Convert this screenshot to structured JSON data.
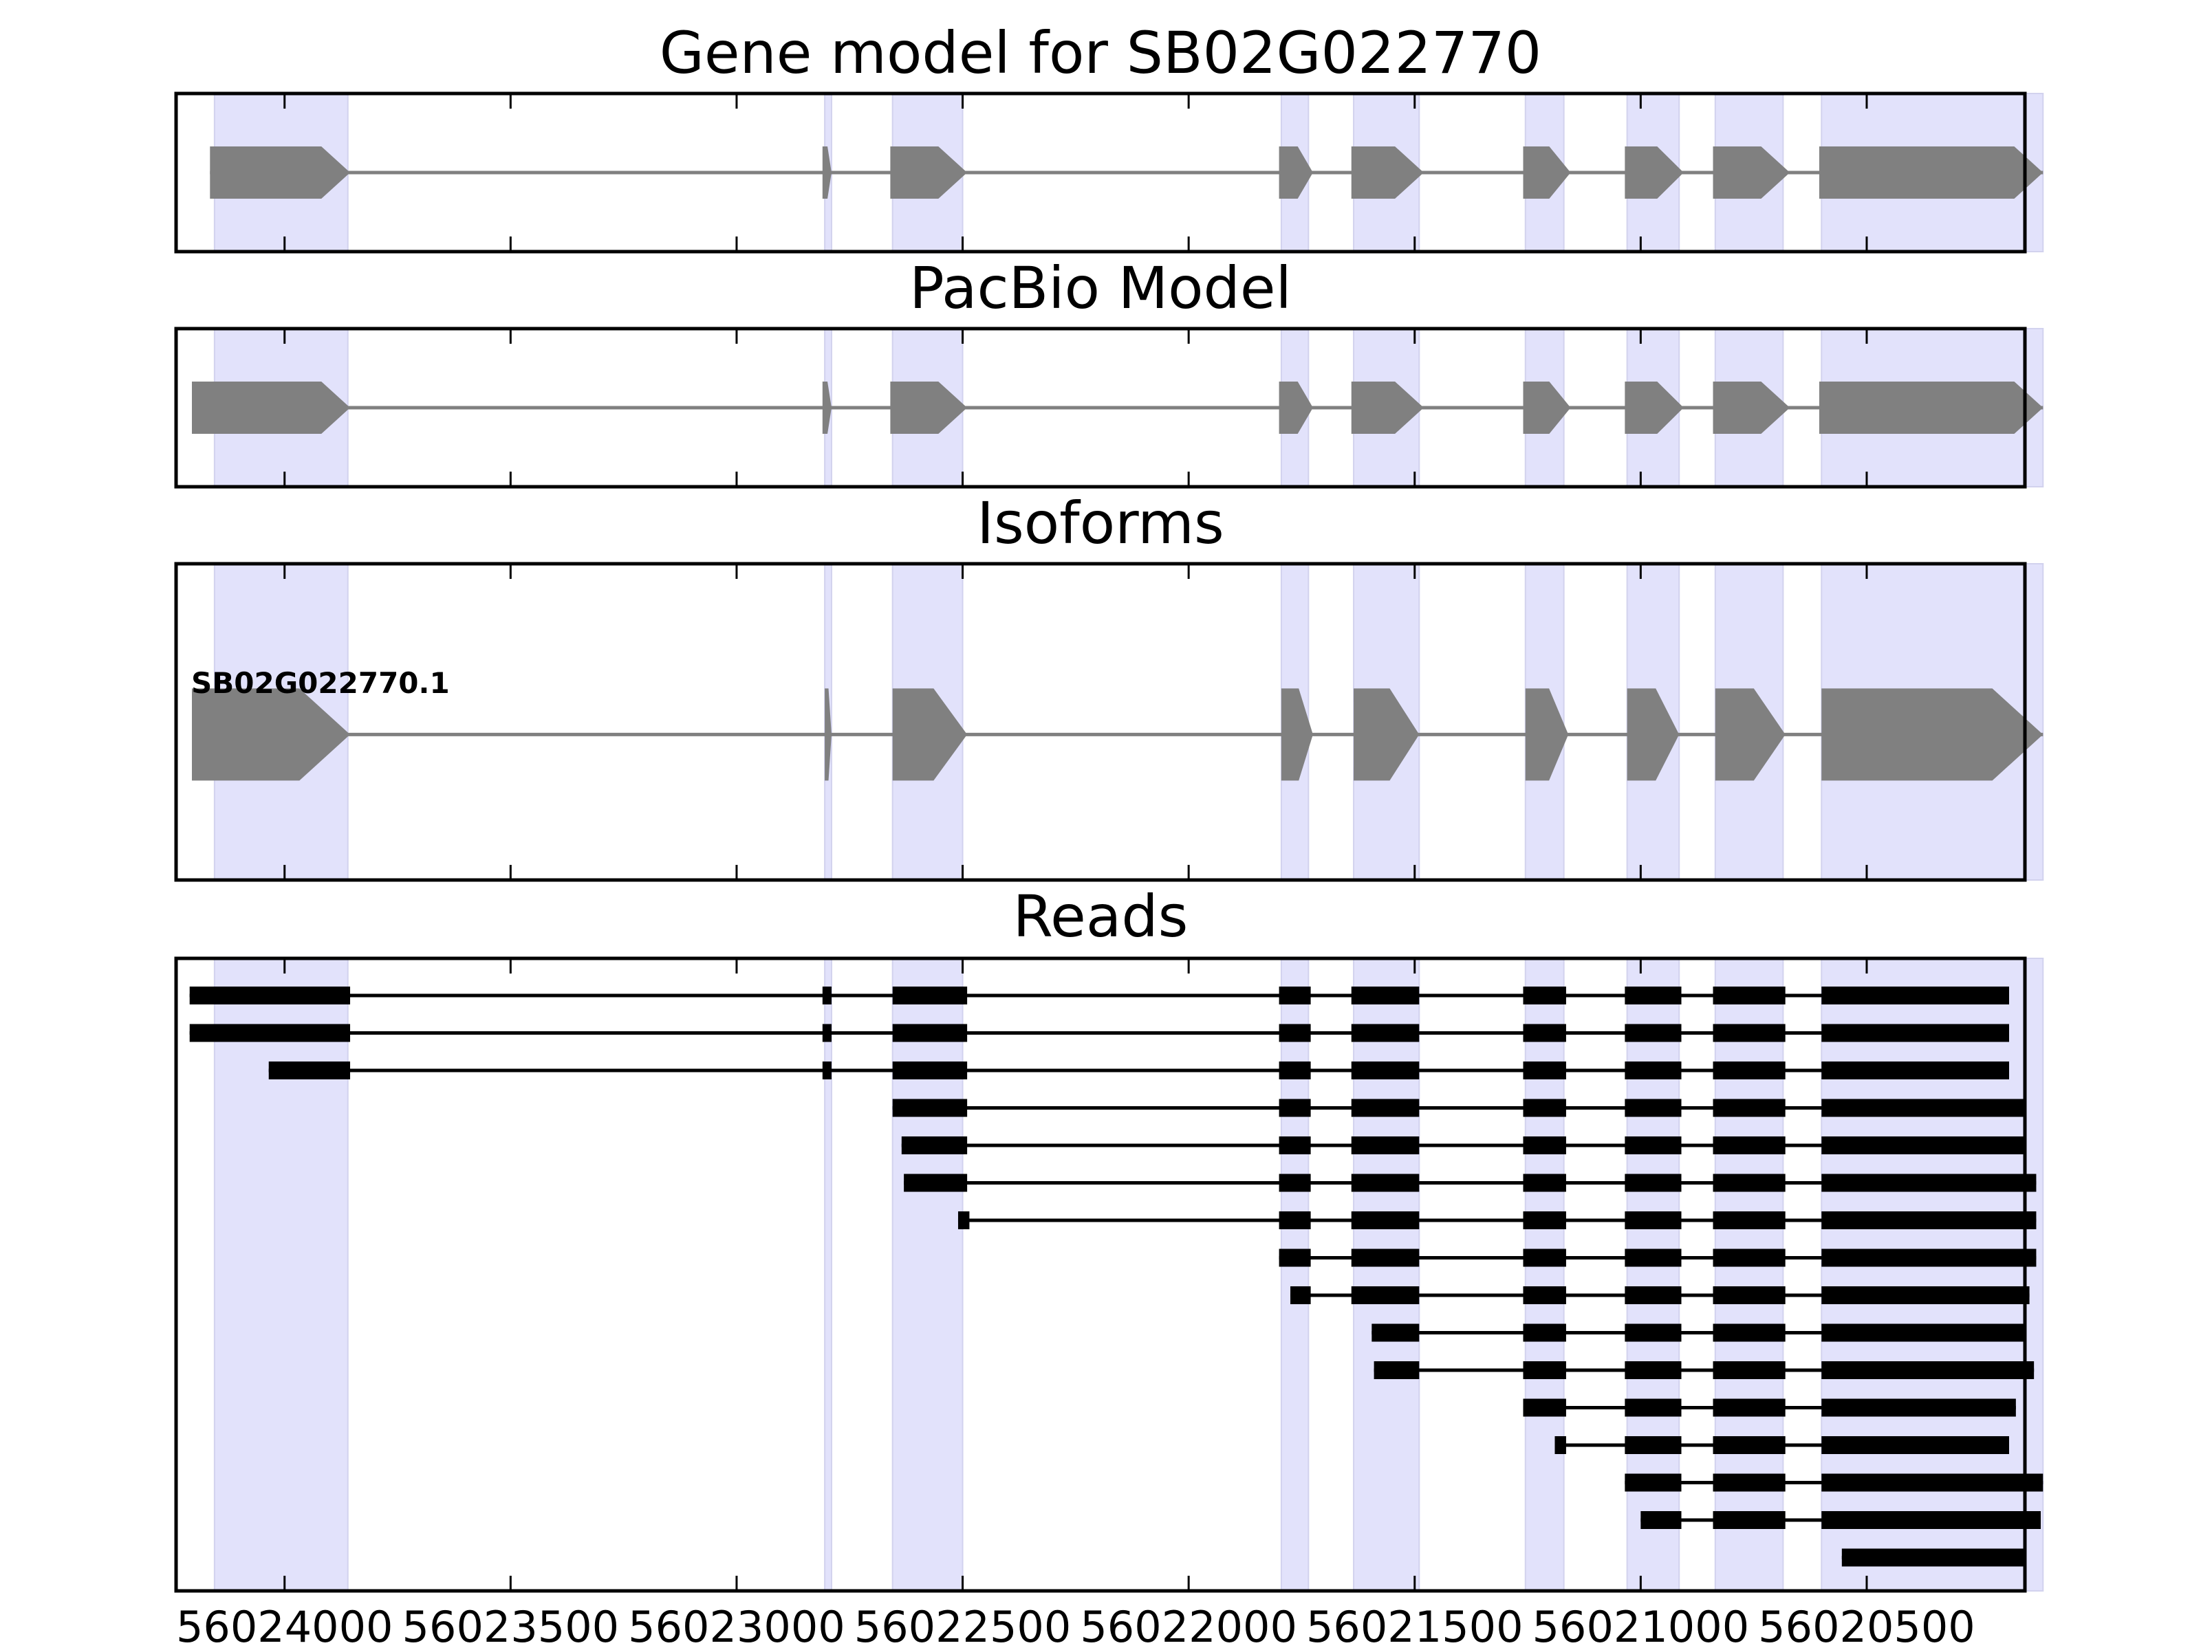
{
  "chart_data": {
    "type": "gene-structure",
    "x_direction": "descending",
    "xlim": [
      56024240,
      56020150
    ],
    "x_tick_values": [
      56024000,
      56023500,
      56023000,
      56022500,
      56022000,
      56021500,
      56021000,
      56020500
    ],
    "x_tick_labels": [
      "56024000",
      "56023500",
      "56023000",
      "56022500",
      "56022000",
      "56021500",
      "56021000",
      "56020500"
    ],
    "colors": {
      "exon": "#808080",
      "intron": "#808080",
      "read": "#000000",
      "highlight": "#e2e2fb",
      "frame": "#000000"
    },
    "highlight_regions": [
      [
        56024155,
        56023860
      ],
      [
        56022805,
        56022790
      ],
      [
        56022655,
        56022500
      ],
      [
        56021795,
        56021735
      ],
      [
        56021635,
        56021490
      ],
      [
        56021255,
        56021170
      ],
      [
        56021030,
        56020915
      ],
      [
        56020835,
        56020685
      ],
      [
        56020600,
        56020110
      ]
    ],
    "panels": [
      {
        "title": "Gene model for SB02G022770",
        "type": "arrow-model",
        "exons": [
          [
            56024165,
            56023855
          ],
          [
            56022810,
            56022790
          ],
          [
            56022660,
            56022490
          ],
          [
            56021800,
            56021725
          ],
          [
            56021640,
            56021480
          ],
          [
            56021260,
            56021155
          ],
          [
            56021035,
            56020905
          ],
          [
            56020840,
            56020670
          ],
          [
            56020605,
            56020110
          ]
        ]
      },
      {
        "title": "PacBio Model",
        "type": "arrow-model",
        "exons": [
          [
            56024205,
            56023855
          ],
          [
            56022810,
            56022790
          ],
          [
            56022660,
            56022490
          ],
          [
            56021800,
            56021725
          ],
          [
            56021640,
            56021480
          ],
          [
            56021260,
            56021155
          ],
          [
            56021035,
            56020905
          ],
          [
            56020840,
            56020670
          ],
          [
            56020605,
            56020110
          ]
        ]
      },
      {
        "title": "Isoforms",
        "type": "arrow-model",
        "isoform_label": "SB02G022770.1",
        "exons": [
          [
            56024205,
            56023855
          ],
          [
            56022805,
            56022790
          ],
          [
            56022655,
            56022490
          ],
          [
            56021795,
            56021725
          ],
          [
            56021635,
            56021490
          ],
          [
            56021255,
            56021160
          ],
          [
            56021030,
            56020915
          ],
          [
            56020835,
            56020680
          ],
          [
            56020600,
            56020110
          ]
        ]
      },
      {
        "title": "Reads",
        "type": "reads",
        "reads": [
          [
            [
              56024210,
              56023855
            ],
            [
              56022810,
              56022790
            ],
            [
              56022655,
              56022490
            ],
            [
              56021800,
              56021730
            ],
            [
              56021640,
              56021490
            ],
            [
              56021260,
              56021165
            ],
            [
              56021035,
              56020910
            ],
            [
              56020840,
              56020680
            ],
            [
              56020600,
              56020185
            ]
          ],
          [
            [
              56024210,
              56023855
            ],
            [
              56022810,
              56022790
            ],
            [
              56022655,
              56022490
            ],
            [
              56021800,
              56021730
            ],
            [
              56021640,
              56021490
            ],
            [
              56021260,
              56021165
            ],
            [
              56021035,
              56020910
            ],
            [
              56020840,
              56020680
            ],
            [
              56020600,
              56020185
            ]
          ],
          [
            [
              56024035,
              56023855
            ],
            [
              56022810,
              56022790
            ],
            [
              56022655,
              56022490
            ],
            [
              56021800,
              56021730
            ],
            [
              56021640,
              56021490
            ],
            [
              56021260,
              56021165
            ],
            [
              56021035,
              56020910
            ],
            [
              56020840,
              56020680
            ],
            [
              56020600,
              56020185
            ]
          ],
          [
            [
              56022655,
              56022490
            ],
            [
              56021800,
              56021730
            ],
            [
              56021640,
              56021490
            ],
            [
              56021260,
              56021165
            ],
            [
              56021035,
              56020910
            ],
            [
              56020840,
              56020680
            ],
            [
              56020600,
              56020150
            ]
          ],
          [
            [
              56022635,
              56022490
            ],
            [
              56021800,
              56021730
            ],
            [
              56021640,
              56021490
            ],
            [
              56021260,
              56021165
            ],
            [
              56021035,
              56020910
            ],
            [
              56020840,
              56020680
            ],
            [
              56020600,
              56020150
            ]
          ],
          [
            [
              56022630,
              56022490
            ],
            [
              56021800,
              56021730
            ],
            [
              56021640,
              56021490
            ],
            [
              56021260,
              56021165
            ],
            [
              56021035,
              56020910
            ],
            [
              56020840,
              56020680
            ],
            [
              56020600,
              56020125
            ]
          ],
          [
            [
              56022510,
              56022485
            ],
            [
              56021800,
              56021730
            ],
            [
              56021640,
              56021490
            ],
            [
              56021260,
              56021165
            ],
            [
              56021035,
              56020910
            ],
            [
              56020840,
              56020680
            ],
            [
              56020600,
              56020125
            ]
          ],
          [
            [
              56021800,
              56021730
            ],
            [
              56021640,
              56021490
            ],
            [
              56021260,
              56021165
            ],
            [
              56021035,
              56020910
            ],
            [
              56020840,
              56020680
            ],
            [
              56020600,
              56020125
            ]
          ],
          [
            [
              56021775,
              56021730
            ],
            [
              56021640,
              56021490
            ],
            [
              56021260,
              56021165
            ],
            [
              56021035,
              56020910
            ],
            [
              56020840,
              56020680
            ],
            [
              56020600,
              56020140
            ]
          ],
          [
            [
              56021595,
              56021490
            ],
            [
              56021260,
              56021165
            ],
            [
              56021035,
              56020910
            ],
            [
              56020840,
              56020680
            ],
            [
              56020600,
              56020150
            ]
          ],
          [
            [
              56021590,
              56021490
            ],
            [
              56021260,
              56021165
            ],
            [
              56021035,
              56020910
            ],
            [
              56020840,
              56020680
            ],
            [
              56020600,
              56020130
            ]
          ],
          [
            [
              56021260,
              56021165
            ],
            [
              56021035,
              56020910
            ],
            [
              56020840,
              56020680
            ],
            [
              56020600,
              56020170
            ]
          ],
          [
            [
              56021190,
              56021165
            ],
            [
              56021035,
              56020910
            ],
            [
              56020840,
              56020680
            ],
            [
              56020600,
              56020185
            ]
          ],
          [
            [
              56021035,
              56020910
            ],
            [
              56020840,
              56020680
            ],
            [
              56020600,
              56020110
            ]
          ],
          [
            [
              56021000,
              56020910
            ],
            [
              56020840,
              56020680
            ],
            [
              56020600,
              56020115
            ]
          ],
          [
            [
              56020555,
              56020150
            ]
          ]
        ]
      }
    ]
  }
}
